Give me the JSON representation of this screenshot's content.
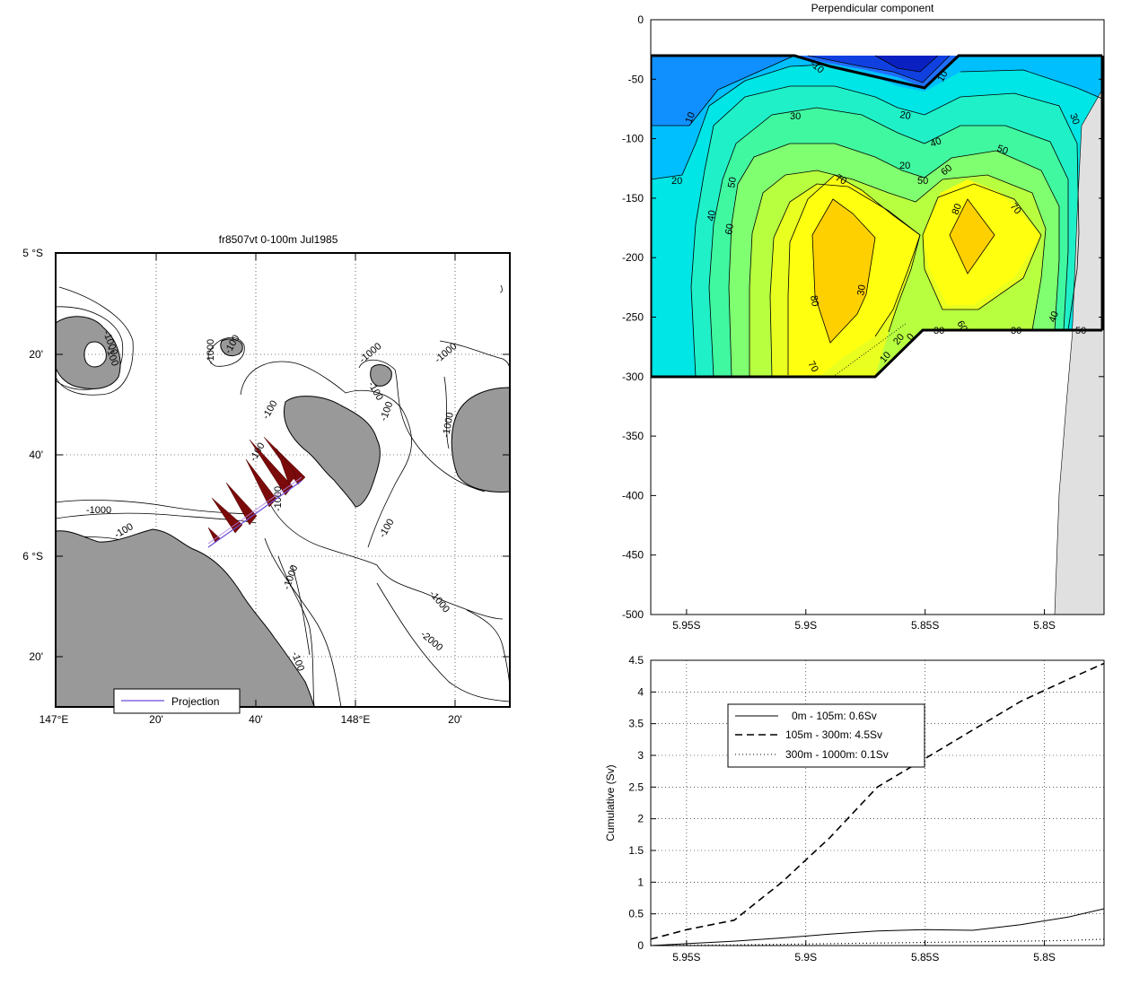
{
  "map": {
    "title": "fr8507vt 0-100m Jul1985",
    "lat_labels": [
      "5 °S",
      "20'",
      "40'",
      "6 °S",
      "20'"
    ],
    "lon_labels": [
      "147°E",
      "20'",
      "40'",
      "148°E",
      "20'"
    ],
    "legend_label": "Projection",
    "contour_labels": [
      "-1000",
      "-100",
      "-1000",
      "-100",
      "-1000",
      "-100",
      "-1000",
      "-100",
      "-1000",
      "-100",
      "-100",
      "-1000",
      "-100",
      "-1000",
      "-100",
      "-1000",
      "-2000",
      "-100",
      "-1000"
    ],
    "colors": {
      "land": "#999999",
      "arrow": "#7b0a0a",
      "projection": "#6a4bd6"
    }
  },
  "section": {
    "title": "Perpendicular component",
    "contour_labels": [
      "10",
      "20",
      "30",
      "40",
      "50",
      "60",
      "70",
      "80",
      "-10",
      "10",
      "20",
      "30",
      "40",
      "50",
      "60",
      "70",
      "80",
      "20",
      "30",
      "50",
      "60",
      "70",
      "30",
      "40",
      "50",
      "30",
      "20",
      "10",
      "0"
    ]
  },
  "chart_data": [
    {
      "type": "heatmap",
      "title": "Perpendicular component",
      "xlabel": "",
      "ylabel": "",
      "x_ticks": [
        "5.95S",
        "5.9S",
        "5.85S",
        "5.8S"
      ],
      "y_ticks": [
        0,
        -50,
        -100,
        -150,
        -200,
        -250,
        -300,
        -350,
        -400,
        -450,
        -500
      ],
      "ylim": [
        -500,
        0
      ],
      "x_range_deg_south": [
        5.965,
        5.775
      ],
      "colormap": "jet",
      "contour_levels": [
        -10,
        0,
        10,
        20,
        30,
        40,
        50,
        60,
        70,
        80
      ],
      "grid": false
    },
    {
      "type": "line",
      "title": "",
      "xlabel": "",
      "ylabel": "Cumulative (Sv)",
      "x_ticks": [
        "5.95S",
        "5.9S",
        "5.85S",
        "5.8S"
      ],
      "y_ticks": [
        "0",
        "0.5",
        "1",
        "1.5",
        "2",
        "2.5",
        "3",
        "3.5",
        "4",
        "4.5"
      ],
      "ylim": [
        0,
        4.5
      ],
      "x_deg_south": [
        5.965,
        5.95,
        5.93,
        5.91,
        5.89,
        5.87,
        5.85,
        5.83,
        5.81,
        5.79,
        5.775
      ],
      "series": [
        {
          "name": "0m - 105m: 0.6Sv",
          "style": "solid",
          "values": [
            0.0,
            0.03,
            0.07,
            0.12,
            0.18,
            0.23,
            0.25,
            0.24,
            0.33,
            0.45,
            0.58
          ]
        },
        {
          "name": "105m - 300m: 4.5Sv",
          "style": "dashed",
          "values": [
            0.1,
            0.25,
            0.4,
            1.0,
            1.7,
            2.5,
            2.95,
            3.4,
            3.85,
            4.2,
            4.45
          ]
        },
        {
          "name": "300m - 1000m: 0.1Sv",
          "style": "dotted",
          "values": [
            0.0,
            0.005,
            0.01,
            0.02,
            0.03,
            0.04,
            0.05,
            0.06,
            0.07,
            0.08,
            0.1
          ]
        }
      ],
      "legend_position": "top-left",
      "grid": true
    }
  ]
}
